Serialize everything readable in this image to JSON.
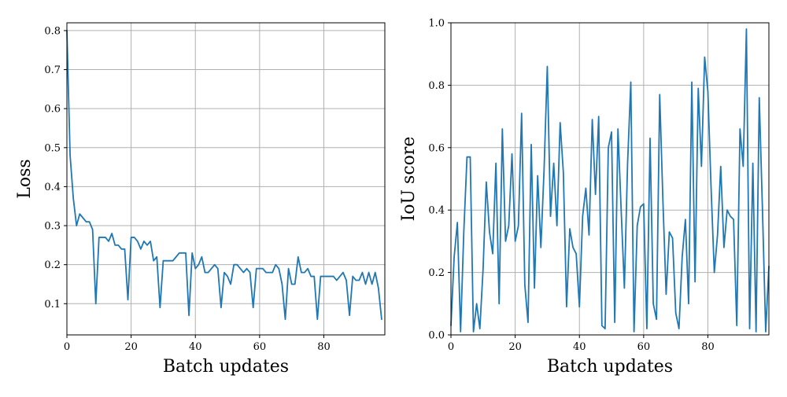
{
  "colors": {
    "series": "#1f77b4",
    "grid": "#b0b0b0"
  },
  "chart_data": [
    {
      "type": "line",
      "xlabel": "Batch updates",
      "ylabel": "Loss",
      "xlim": [
        0,
        99
      ],
      "ylim": [
        0.02,
        0.82
      ],
      "xticks": [
        0,
        20,
        40,
        60,
        80
      ],
      "yticks": [
        0.1,
        0.2,
        0.3,
        0.4,
        0.5,
        0.6,
        0.7,
        0.8
      ],
      "ytick_decimals": 1,
      "grid": true,
      "x_start": 0,
      "series": [
        {
          "values": [
            0.8,
            0.48,
            0.37,
            0.3,
            0.33,
            0.32,
            0.31,
            0.31,
            0.29,
            0.1,
            0.27,
            0.27,
            0.27,
            0.26,
            0.28,
            0.25,
            0.25,
            0.24,
            0.24,
            0.11,
            0.27,
            0.27,
            0.26,
            0.24,
            0.26,
            0.25,
            0.26,
            0.21,
            0.22,
            0.09,
            0.21,
            0.21,
            0.21,
            0.21,
            0.22,
            0.23,
            0.23,
            0.23,
            0.07,
            0.23,
            0.19,
            0.2,
            0.22,
            0.18,
            0.18,
            0.19,
            0.2,
            0.19,
            0.09,
            0.18,
            0.17,
            0.15,
            0.2,
            0.2,
            0.19,
            0.18,
            0.19,
            0.18,
            0.09,
            0.19,
            0.19,
            0.19,
            0.18,
            0.18,
            0.18,
            0.2,
            0.19,
            0.15,
            0.06,
            0.19,
            0.15,
            0.15,
            0.22,
            0.18,
            0.18,
            0.19,
            0.17,
            0.17,
            0.06,
            0.17,
            0.17,
            0.17,
            0.17,
            0.17,
            0.16,
            0.17,
            0.18,
            0.16,
            0.07,
            0.17,
            0.16,
            0.16,
            0.18,
            0.15,
            0.18,
            0.15,
            0.18,
            0.14,
            0.06
          ]
        }
      ]
    },
    {
      "type": "line",
      "xlabel": "Batch updates",
      "ylabel": "IoU score",
      "xlim": [
        0,
        99
      ],
      "ylim": [
        0,
        1
      ],
      "xticks": [
        0,
        20,
        40,
        60,
        80
      ],
      "yticks": [
        0.0,
        0.2,
        0.4,
        0.6,
        0.8,
        1.0
      ],
      "ytick_decimals": 1,
      "grid": true,
      "x_start": 0,
      "series": [
        {
          "values": [
            0.03,
            0.25,
            0.36,
            0.01,
            0.33,
            0.57,
            0.57,
            0.01,
            0.1,
            0.02,
            0.21,
            0.49,
            0.33,
            0.26,
            0.55,
            0.1,
            0.66,
            0.3,
            0.35,
            0.58,
            0.3,
            0.35,
            0.71,
            0.16,
            0.04,
            0.61,
            0.15,
            0.51,
            0.28,
            0.53,
            0.86,
            0.38,
            0.55,
            0.35,
            0.68,
            0.52,
            0.09,
            0.34,
            0.28,
            0.26,
            0.09,
            0.38,
            0.47,
            0.32,
            0.69,
            0.45,
            0.7,
            0.03,
            0.02,
            0.6,
            0.65,
            0.04,
            0.66,
            0.4,
            0.15,
            0.55,
            0.81,
            0.01,
            0.35,
            0.41,
            0.42,
            0.02,
            0.63,
            0.1,
            0.05,
            0.77,
            0.43,
            0.13,
            0.33,
            0.31,
            0.07,
            0.02,
            0.25,
            0.37,
            0.1,
            0.81,
            0.17,
            0.79,
            0.54,
            0.89,
            0.78,
            0.47,
            0.2,
            0.32,
            0.54,
            0.28,
            0.4,
            0.38,
            0.37,
            0.03,
            0.66,
            0.54,
            0.98,
            0.02,
            0.55,
            0.01,
            0.76,
            0.4,
            0.01,
            0.22
          ]
        }
      ]
    }
  ]
}
